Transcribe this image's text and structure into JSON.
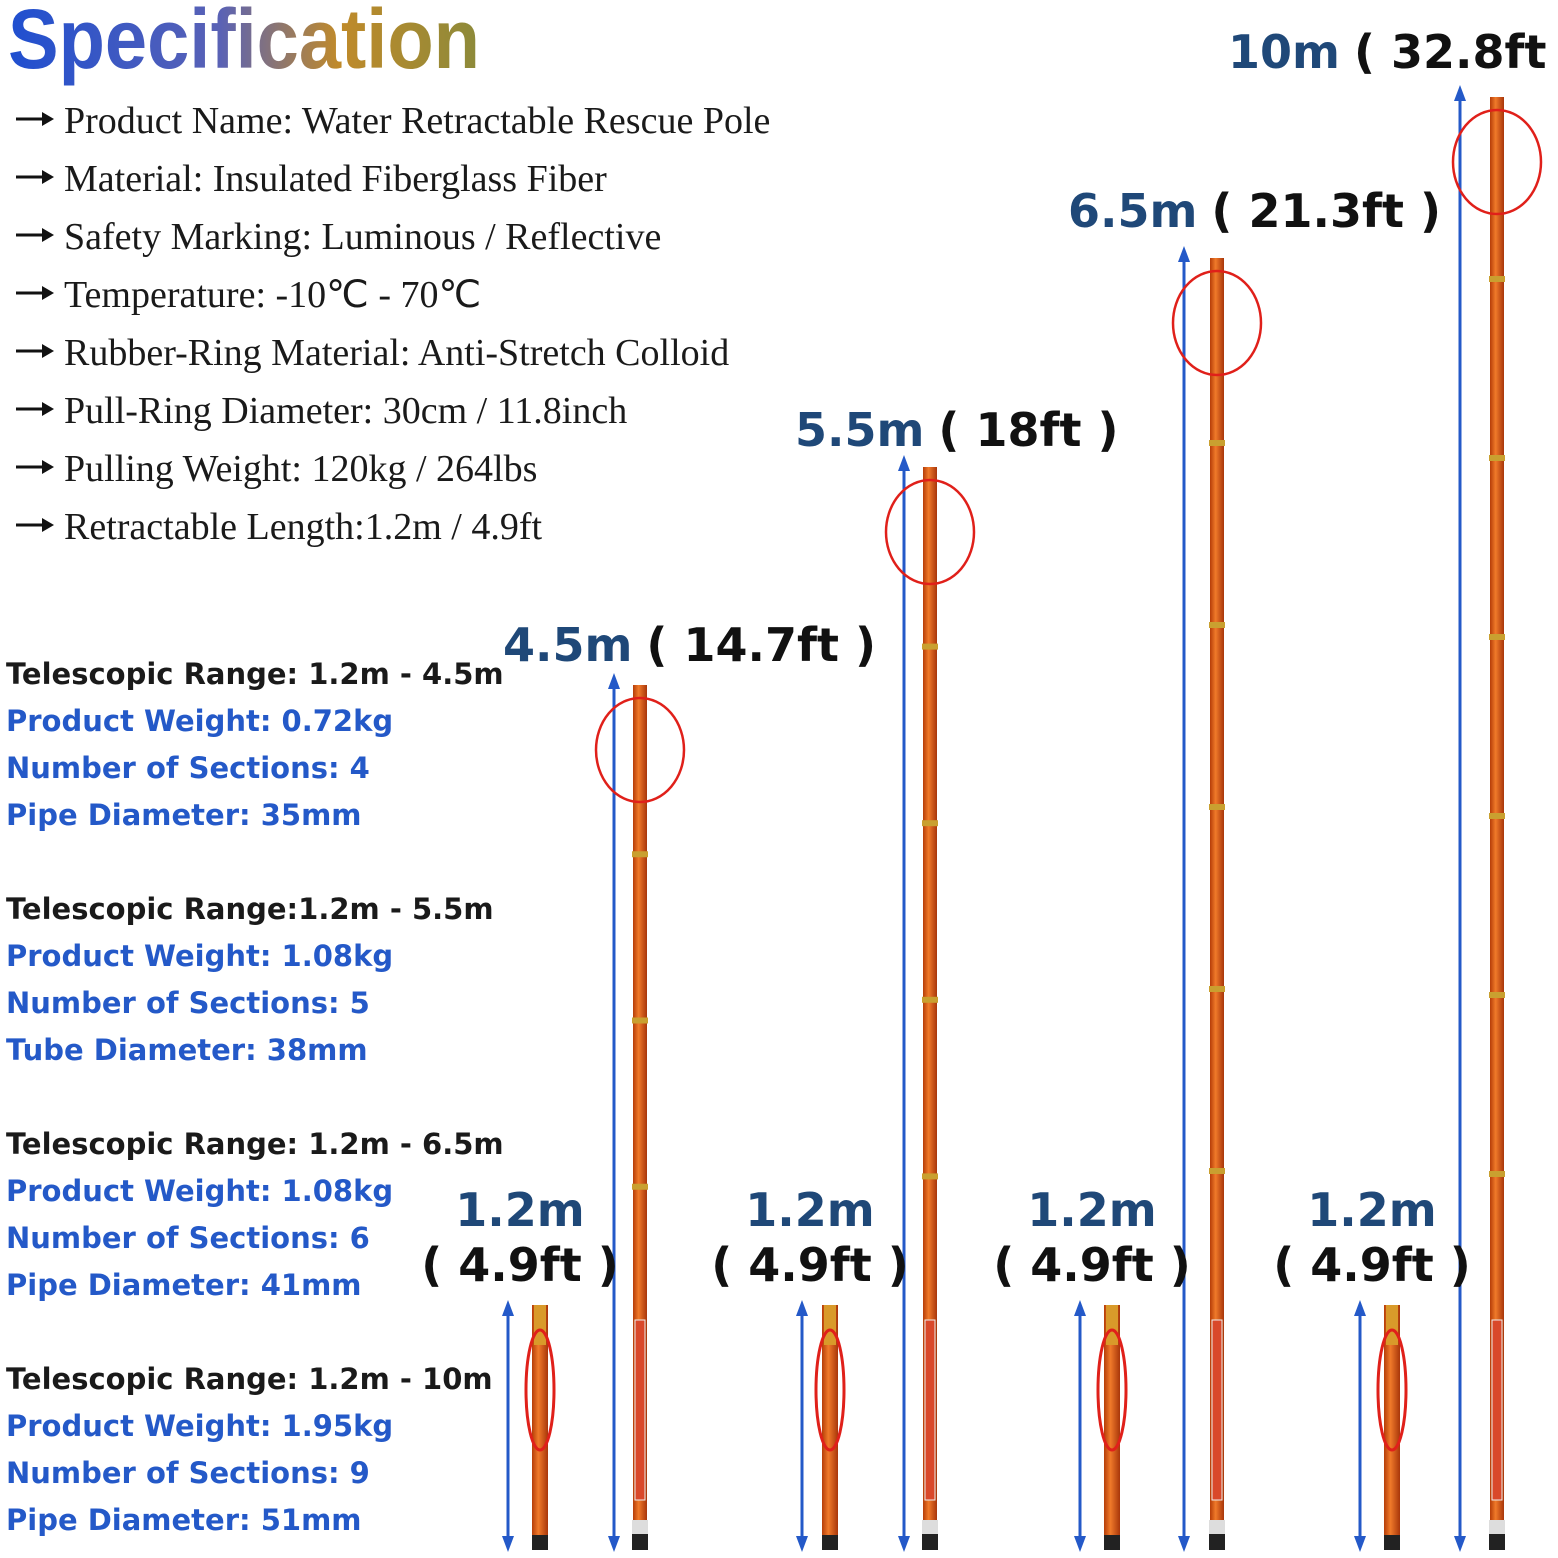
{
  "title": "Specification",
  "specs": [
    "Product Name: Water Retractable Rescue Pole",
    "Material: Insulated Fiberglass Fiber",
    "Safety Marking: Luminous / Reflective",
    "Temperature: -10℃ - 70℃",
    "Rubber-Ring Material: Anti-Stretch Colloid",
    "Pull-Ring Diameter: 30cm / 11.8inch",
    "Pulling Weight: 120kg / 264lbs",
    "Retractable Length:1.2m / 4.9ft"
  ],
  "models": [
    {
      "range": "Telescopic Range: 1.2m - 4.5m",
      "weight": "Product Weight: 0.72kg",
      "sections": "Number of Sections: 4",
      "diameter": "Pipe Diameter: 35mm",
      "extended_m": "4.5m",
      "extended_ft": "( 14.7ft )",
      "retracted_m": "1.2m",
      "retracted_ft": "( 4.9ft )"
    },
    {
      "range": "Telescopic Range:1.2m - 5.5m",
      "weight": "Product Weight: 1.08kg",
      "sections": "Number of Sections: 5",
      "diameter": "Tube Diameter: 38mm",
      "extended_m": "5.5m",
      "extended_ft": "( 18ft )",
      "retracted_m": "1.2m",
      "retracted_ft": "( 4.9ft )"
    },
    {
      "range": "Telescopic Range: 1.2m - 6.5m",
      "weight": "Product Weight: 1.08kg",
      "sections": "Number of Sections: 6",
      "diameter": "Pipe Diameter: 41mm",
      "extended_m": "6.5m",
      "extended_ft": "( 21.3ft )",
      "retracted_m": "1.2m",
      "retracted_ft": "( 4.9ft )"
    },
    {
      "range": "Telescopic Range: 1.2m - 10m",
      "weight": "Product Weight: 1.95kg",
      "sections": "Number of Sections: 9",
      "diameter": "Pipe Diameter: 51mm",
      "extended_m": "10m",
      "extended_ft": "( 32.8ft )",
      "retracted_m": "1.2m",
      "retracted_ft": "( 4.9ft )"
    }
  ]
}
